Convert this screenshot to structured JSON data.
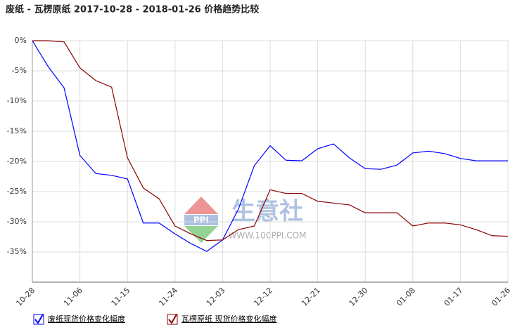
{
  "chart_data": {
    "type": "line",
    "title": "废纸 - 瓦楞原纸 2017-10-28 - 2018-01-26 价格趋势比较",
    "watermark": "生意社",
    "watermark_url": "WWW.100PPI.COM",
    "categories": [
      "10-28",
      null,
      null,
      "11-06",
      null,
      null,
      "11-15",
      null,
      null,
      "11-24",
      null,
      null,
      "12-03",
      null,
      null,
      "12-12",
      null,
      null,
      "12-21",
      null,
      null,
      "12-30",
      null,
      null,
      "01-08",
      null,
      null,
      "01-17",
      null,
      null,
      "01-26"
    ],
    "series": [
      {
        "name": "废纸现货价格变化幅度",
        "color": "#0000ff",
        "values": [
          0,
          -4.3,
          -7.8,
          -19,
          -22,
          -22.3,
          -22.9,
          -30.2,
          -30.2,
          -32,
          -33.6,
          -34.9,
          -33,
          -27.9,
          -20.7,
          -17.4,
          -19.8,
          -19.9,
          -17.9,
          -17.1,
          -19.4,
          -21.2,
          -21.3,
          -20.6,
          -18.6,
          -18.3,
          -18.7,
          -19.5,
          -19.9,
          -19.9,
          -19.9
        ]
      },
      {
        "name": "瓦楞原纸 现货价格变化幅度",
        "color": "#8b0000",
        "values": [
          0,
          0,
          -0.2,
          -4.5,
          -6.6,
          -7.7,
          -19.4,
          -24.4,
          -26.2,
          -30.7,
          -32,
          -33.1,
          -33,
          -31.3,
          -30.7,
          -24.7,
          -25.3,
          -25.3,
          -26.6,
          -26.9,
          -27.2,
          -28.5,
          -28.5,
          -28.5,
          -30.7,
          -30.2,
          -30.2,
          -30.5,
          -31.3,
          -32.3,
          -32.4
        ]
      }
    ],
    "ylim": [
      -40,
      0
    ],
    "yticks": [
      {
        "value": 0,
        "label": "0%"
      },
      {
        "value": -5,
        "label": "-5%"
      },
      {
        "value": -10,
        "label": "-10%"
      },
      {
        "value": -15,
        "label": "-15%"
      },
      {
        "value": -20,
        "label": "-20%"
      },
      {
        "value": -25,
        "label": "-25%"
      },
      {
        "value": -30,
        "label": "-30%"
      },
      {
        "value": -35,
        "label": "-35%"
      }
    ],
    "grid": true
  }
}
